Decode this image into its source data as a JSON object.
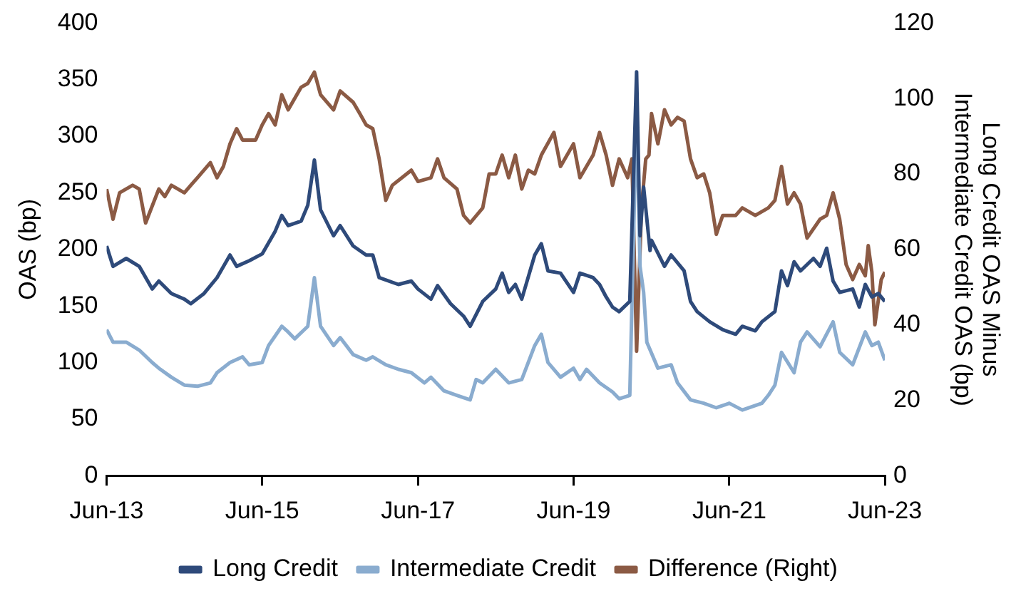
{
  "chart_data": {
    "type": "line",
    "ylabel": "OAS (bp)",
    "y2label": "Long Credit OAS Minus Intermediate Credit OAS (bp)",
    "xlim": [
      "2013-06",
      "2023-06"
    ],
    "xticks": [
      {
        "value": "2013-06",
        "label": "Jun-13"
      },
      {
        "value": "2015-06",
        "label": "Jun-15"
      },
      {
        "value": "2017-06",
        "label": "Jun-17"
      },
      {
        "value": "2019-06",
        "label": "Jun-19"
      },
      {
        "value": "2021-06",
        "label": "Jun-21"
      },
      {
        "value": "2023-06",
        "label": "Jun-23"
      }
    ],
    "ylim": [
      0,
      400
    ],
    "yticks": [
      0,
      50,
      100,
      150,
      200,
      250,
      300,
      350,
      400
    ],
    "y2lim": [
      0,
      120
    ],
    "y2ticks": [
      0,
      20,
      40,
      60,
      80,
      100,
      120
    ],
    "legend": "bottom",
    "series": [
      {
        "name": "Long Credit",
        "color": "#2e4a7a",
        "x": [
          "2013-06",
          "2013-07",
          "2013-09",
          "2013-11",
          "2014-01",
          "2014-02",
          "2014-04",
          "2014-06",
          "2014-07",
          "2014-09",
          "2014-11",
          "2015-01",
          "2015-02",
          "2015-04",
          "2015-06",
          "2015-08",
          "2015-09",
          "2015-10",
          "2015-12",
          "2016-01",
          "2016-02",
          "2016-03",
          "2016-05",
          "2016-06",
          "2016-08",
          "2016-10",
          "2016-11",
          "2016-12",
          "2017-03",
          "2017-05",
          "2017-06",
          "2017-08",
          "2017-09",
          "2017-11",
          "2018-01",
          "2018-02",
          "2018-04",
          "2018-06",
          "2018-07",
          "2018-08",
          "2018-09",
          "2018-10",
          "2018-12",
          "2019-01",
          "2019-02",
          "2019-04",
          "2019-06",
          "2019-07",
          "2019-09",
          "2019-10",
          "2019-11",
          "2019-12",
          "2020-01",
          "2020-02-20",
          "2020-03-23",
          "2020-04-08",
          "2020-04-25",
          "2020-05-25",
          "2020-06",
          "2020-08",
          "2020-09",
          "2020-11",
          "2020-12",
          "2021-01",
          "2021-03",
          "2021-05",
          "2021-07",
          "2021-08",
          "2021-10",
          "2021-11",
          "2022-01",
          "2022-02",
          "2022-03",
          "2022-04",
          "2022-05",
          "2022-07",
          "2022-08",
          "2022-09",
          "2022-10",
          "2022-11",
          "2023-01",
          "2023-02",
          "2023-03",
          "2023-04",
          "2023-05",
          "2023-06"
        ],
        "values": [
          203,
          185,
          192,
          185,
          165,
          172,
          161,
          156,
          152,
          161,
          175,
          195,
          185,
          190,
          196,
          216,
          230,
          221,
          225,
          239,
          279,
          235,
          212,
          221,
          203,
          195,
          195,
          175,
          169,
          172,
          165,
          156,
          168,
          152,
          141,
          132,
          154,
          165,
          179,
          162,
          169,
          156,
          195,
          205,
          181,
          179,
          162,
          179,
          175,
          169,
          158,
          149,
          145,
          154,
          357,
          212,
          255,
          199,
          208,
          185,
          195,
          181,
          154,
          145,
          136,
          129,
          125,
          132,
          128,
          136,
          145,
          181,
          168,
          189,
          181,
          192,
          185,
          201,
          172,
          162,
          165,
          149,
          169,
          158,
          161,
          154
        ]
      },
      {
        "name": "Intermediate Credit",
        "color": "#8aaccf",
        "x": [
          "2013-06",
          "2013-07",
          "2013-09",
          "2013-11",
          "2014-01",
          "2014-02",
          "2014-04",
          "2014-06",
          "2014-08",
          "2014-10",
          "2014-11",
          "2015-01",
          "2015-03",
          "2015-04",
          "2015-06",
          "2015-07",
          "2015-09",
          "2015-10",
          "2015-11",
          "2016-01",
          "2016-02",
          "2016-03",
          "2016-05",
          "2016-06",
          "2016-08",
          "2016-10",
          "2016-11",
          "2017-01",
          "2017-03",
          "2017-05",
          "2017-07",
          "2017-08",
          "2017-10",
          "2017-12",
          "2018-02",
          "2018-03",
          "2018-04",
          "2018-06",
          "2018-08",
          "2018-10",
          "2018-12",
          "2019-01",
          "2019-02",
          "2019-04",
          "2019-06",
          "2019-07",
          "2019-08",
          "2019-10",
          "2019-12",
          "2020-01",
          "2020-02-20",
          "2020-03-23",
          "2020-04-08",
          "2020-04-25",
          "2020-05-10",
          "2020-07",
          "2020-09",
          "2020-10",
          "2020-12",
          "2021-02",
          "2021-04",
          "2021-06",
          "2021-08",
          "2021-11",
          "2021-12",
          "2022-01",
          "2022-02",
          "2022-04",
          "2022-05",
          "2022-06",
          "2022-08",
          "2022-10",
          "2022-11",
          "2023-01",
          "2023-03",
          "2023-04",
          "2023-05",
          "2023-06"
        ],
        "values": [
          129,
          118,
          118,
          111,
          100,
          95,
          87,
          80,
          79,
          82,
          91,
          100,
          105,
          98,
          100,
          115,
          132,
          127,
          121,
          132,
          175,
          132,
          115,
          122,
          107,
          102,
          105,
          98,
          94,
          91,
          82,
          87,
          75,
          71,
          67,
          85,
          82,
          94,
          82,
          85,
          115,
          125,
          100,
          87,
          95,
          85,
          94,
          82,
          74,
          68,
          71,
          326,
          185,
          162,
          118,
          95,
          98,
          82,
          67,
          64,
          60,
          64,
          58,
          64,
          71,
          80,
          109,
          91,
          118,
          127,
          114,
          136,
          109,
          98,
          127,
          115,
          118,
          102
        ]
      },
      {
        "name": "Difference (Right)",
        "color": "#8b5a44",
        "axis": "y2",
        "x": [
          "2013-06",
          "2013-07",
          "2013-08",
          "2013-10",
          "2013-11",
          "2013-12",
          "2014-02",
          "2014-03",
          "2014-04",
          "2014-06",
          "2014-07",
          "2014-08",
          "2014-10",
          "2014-11",
          "2014-12",
          "2015-01",
          "2015-02",
          "2015-03",
          "2015-05",
          "2015-06",
          "2015-07",
          "2015-08",
          "2015-09",
          "2015-10",
          "2015-12",
          "2016-01",
          "2016-02",
          "2016-03",
          "2016-05",
          "2016-06",
          "2016-08",
          "2016-09",
          "2016-10",
          "2016-11",
          "2016-12",
          "2017-01",
          "2017-02",
          "2017-05",
          "2017-06",
          "2017-08",
          "2017-09",
          "2017-10",
          "2017-12",
          "2018-01",
          "2018-02",
          "2018-04",
          "2018-05",
          "2018-06",
          "2018-07",
          "2018-08",
          "2018-09",
          "2018-10",
          "2018-11",
          "2018-12",
          "2019-01",
          "2019-03",
          "2019-04",
          "2019-06",
          "2019-07",
          "2019-09",
          "2019-10",
          "2019-11",
          "2019-12",
          "2020-01",
          "2020-02-10",
          "2020-03-01",
          "2020-03-23",
          "2020-04-15",
          "2020-05-05",
          "2020-05-20",
          "2020-06",
          "2020-07",
          "2020-08",
          "2020-09",
          "2020-10",
          "2020-11",
          "2020-12",
          "2021-01",
          "2021-02",
          "2021-03",
          "2021-04",
          "2021-05",
          "2021-07",
          "2021-08",
          "2021-10",
          "2021-12",
          "2022-01",
          "2022-02",
          "2022-03",
          "2022-04",
          "2022-05",
          "2022-06",
          "2022-08",
          "2022-09",
          "2022-10",
          "2022-11",
          "2022-12",
          "2023-01",
          "2023-02",
          "2023-03-01",
          "2023-03-15",
          "2023-04-01",
          "2023-04-15",
          "2023-05-15",
          "2023-06"
        ],
        "values": [
          76,
          68,
          75,
          77,
          76,
          67,
          76,
          74,
          77,
          75,
          77,
          79,
          83,
          79,
          82,
          88,
          92,
          89,
          89,
          93,
          96,
          93,
          101,
          97,
          103,
          104,
          107,
          101,
          97,
          102,
          99,
          96,
          93,
          92,
          84,
          73,
          77,
          81,
          78,
          79,
          84,
          79,
          76,
          69,
          67,
          71,
          80,
          80,
          85,
          79,
          85,
          76,
          81,
          80,
          85,
          91,
          82,
          88,
          79,
          85,
          91,
          85,
          77,
          84,
          79,
          84,
          33,
          71,
          84,
          85,
          96,
          88,
          97,
          93,
          95,
          94,
          84,
          79,
          80,
          75,
          64,
          69,
          69,
          71,
          69,
          71,
          73,
          82,
          72,
          75,
          72,
          63,
          68,
          69,
          75,
          68,
          56,
          52,
          56,
          53,
          61,
          54,
          40,
          52,
          54
        ]
      }
    ]
  }
}
